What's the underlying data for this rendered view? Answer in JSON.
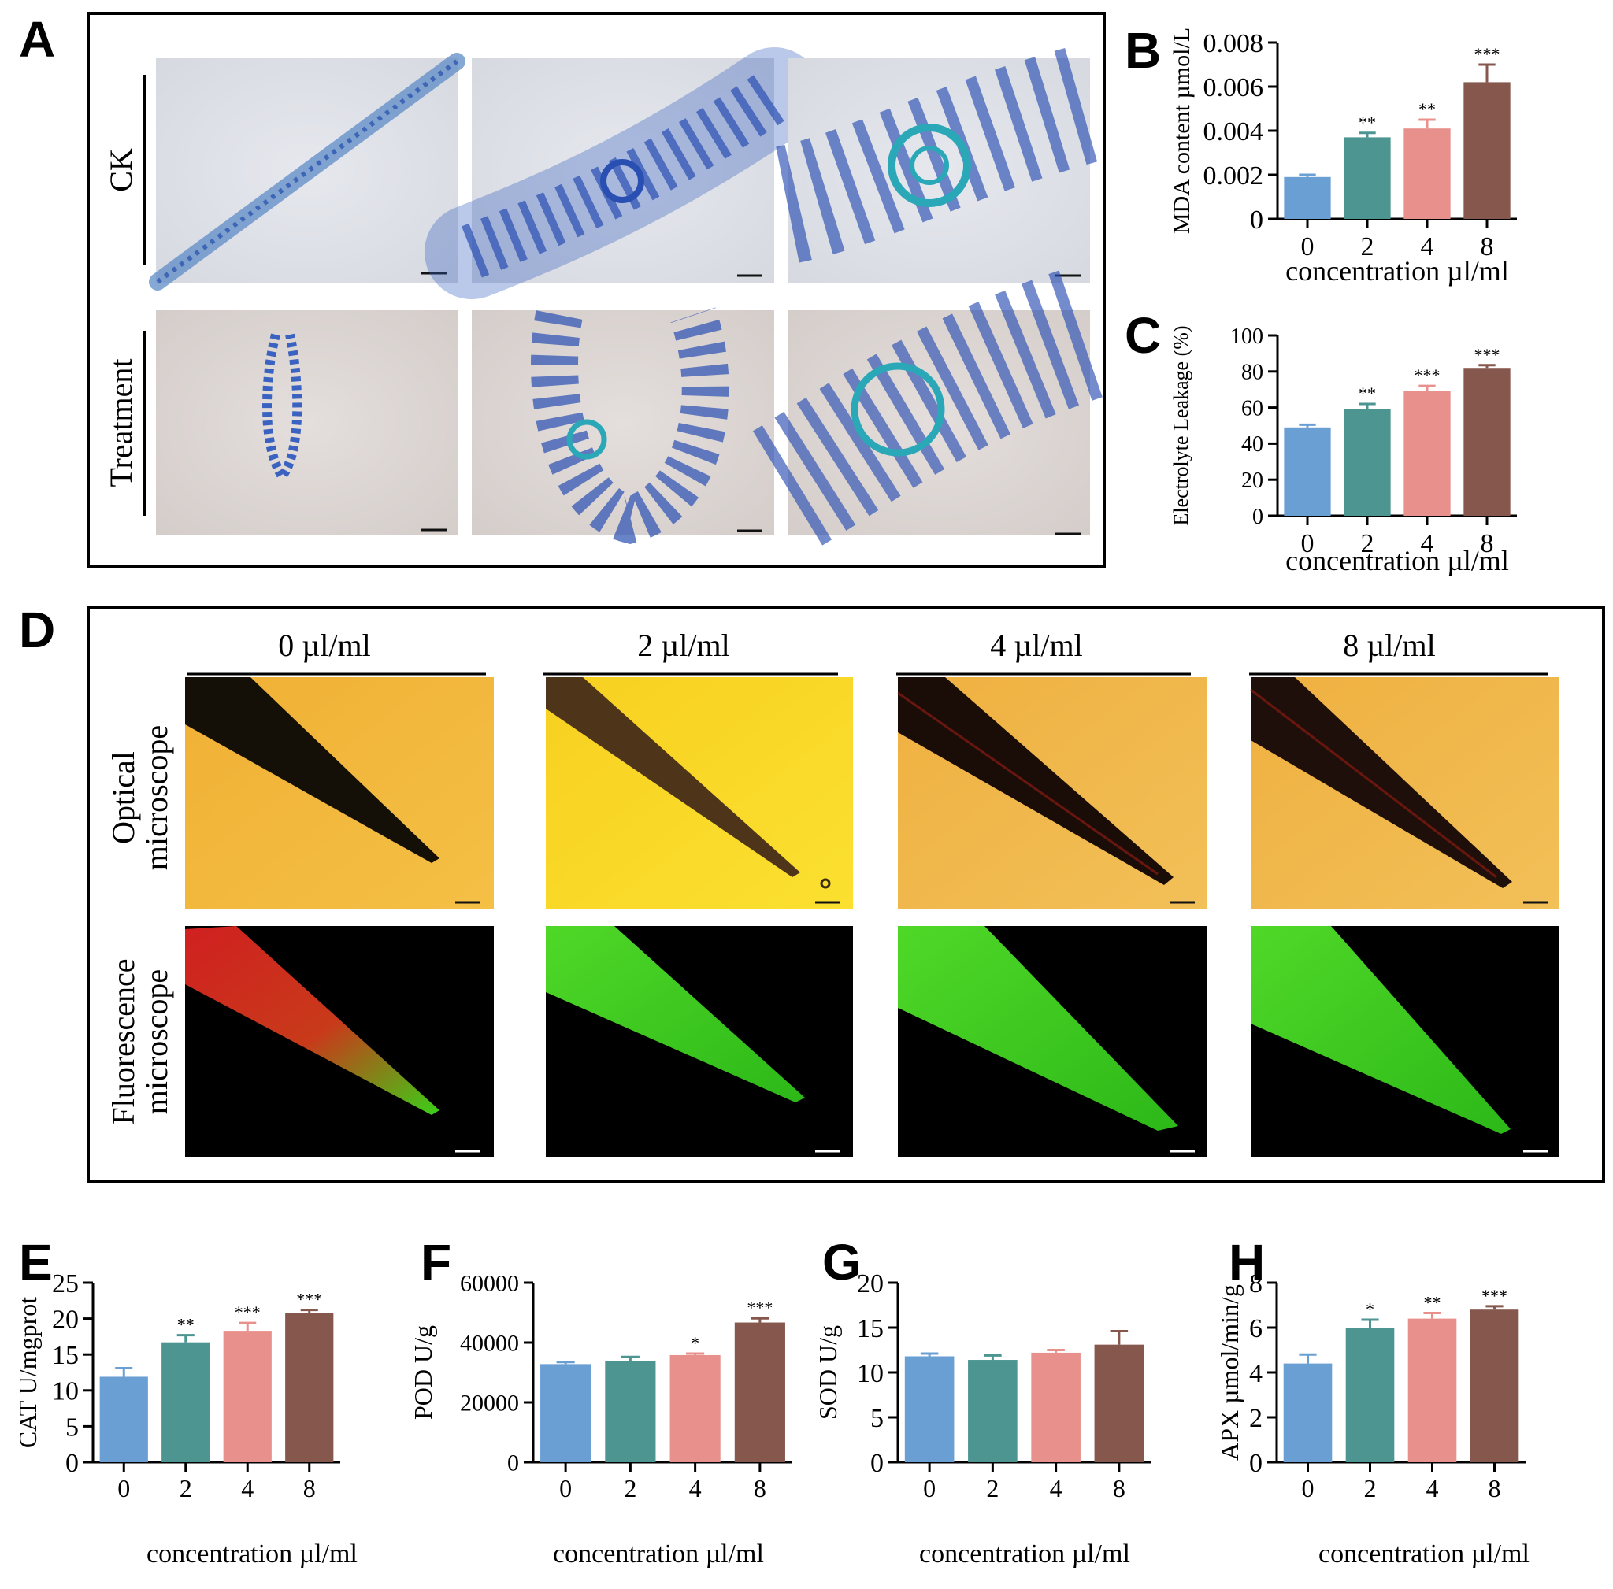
{
  "panel_A": {
    "letter": "A",
    "row_labels": [
      "CK",
      "Treatment"
    ]
  },
  "panel_D": {
    "letter": "D",
    "column_labels": [
      "0 µl/ml",
      "2 µl/ml",
      "4 µl/ml",
      "8 µl/ml"
    ],
    "row_labels": [
      [
        "Optical",
        "microscope"
      ],
      [
        "Fluorescence",
        "microscope"
      ]
    ]
  },
  "colors": {
    "c0": "#6a9fd4",
    "c2": "#4c9590",
    "c4": "#e8908b",
    "c8": "#86574d"
  },
  "chart_data": [
    {
      "id": "B",
      "letter": "B",
      "type": "bar",
      "categories": [
        "0",
        "2",
        "4",
        "8"
      ],
      "values": [
        0.0019,
        0.0037,
        0.0041,
        0.0062
      ],
      "errors": [
        0.0001,
        0.0002,
        0.0004,
        0.0008
      ],
      "significance": [
        "",
        "**",
        "**",
        "***"
      ],
      "ylabel": "MDA content µmol/L",
      "xlabel": "concentration µl/ml",
      "ylim": [
        0,
        0.008
      ],
      "yticks": [
        "0",
        "0.002",
        "0.004",
        "0.006",
        "0.008"
      ]
    },
    {
      "id": "C",
      "letter": "C",
      "type": "bar",
      "categories": [
        "0",
        "2",
        "4",
        "8"
      ],
      "values": [
        49,
        59,
        69,
        82
      ],
      "errors": [
        1.5,
        3,
        3,
        1.5
      ],
      "significance": [
        "",
        "**",
        "***",
        "***"
      ],
      "ylabel": "Electrolyte Leakage (%)",
      "xlabel": "concentration µl/ml",
      "ylim": [
        0,
        100
      ],
      "yticks": [
        "0",
        "20",
        "40",
        "60",
        "80",
        "100"
      ]
    },
    {
      "id": "E",
      "letter": "E",
      "type": "bar",
      "categories": [
        "0",
        "2",
        "4",
        "8"
      ],
      "values": [
        11.9,
        16.7,
        18.3,
        20.8
      ],
      "errors": [
        1.2,
        1.0,
        1.1,
        0.4
      ],
      "significance": [
        "",
        "**",
        "***",
        "***"
      ],
      "ylabel": "CAT U/mgprot",
      "xlabel": "concentration µl/ml",
      "ylim": [
        0,
        25
      ],
      "yticks": [
        "0",
        "5",
        "10",
        "15",
        "20",
        "25"
      ]
    },
    {
      "id": "F",
      "letter": "F",
      "type": "bar",
      "categories": [
        "0",
        "2",
        "4",
        "8"
      ],
      "values": [
        32800,
        33900,
        35800,
        46700
      ],
      "errors": [
        700,
        1300,
        500,
        1400
      ],
      "significance": [
        "",
        "",
        "*",
        "***"
      ],
      "ylabel": "POD U/g",
      "xlabel": "concentration µl/ml",
      "ylim": [
        0,
        60000
      ],
      "yticks": [
        "0",
        "20000",
        "40000",
        "60000"
      ]
    },
    {
      "id": "G",
      "letter": "G",
      "type": "bar",
      "categories": [
        "0",
        "2",
        "4",
        "8"
      ],
      "values": [
        11.8,
        11.4,
        12.2,
        13.1
      ],
      "errors": [
        0.3,
        0.5,
        0.3,
        1.5
      ],
      "significance": [
        "",
        "",
        "",
        ""
      ],
      "ylabel": "SOD U/g",
      "xlabel": "concentration µl/ml",
      "ylim": [
        0,
        20
      ],
      "yticks": [
        "0",
        "5",
        "10",
        "15",
        "20"
      ]
    },
    {
      "id": "H",
      "letter": "H",
      "type": "bar",
      "categories": [
        "0",
        "2",
        "4",
        "8"
      ],
      "values": [
        4.4,
        6.0,
        6.4,
        6.8
      ],
      "errors": [
        0.4,
        0.35,
        0.25,
        0.15
      ],
      "significance": [
        "",
        "*",
        "**",
        "***"
      ],
      "ylabel": "APX µmol/min/g",
      "xlabel": "concentration µl/ml",
      "ylim": [
        0,
        8
      ],
      "yticks": [
        "0",
        "2",
        "4",
        "6",
        "8"
      ]
    }
  ]
}
